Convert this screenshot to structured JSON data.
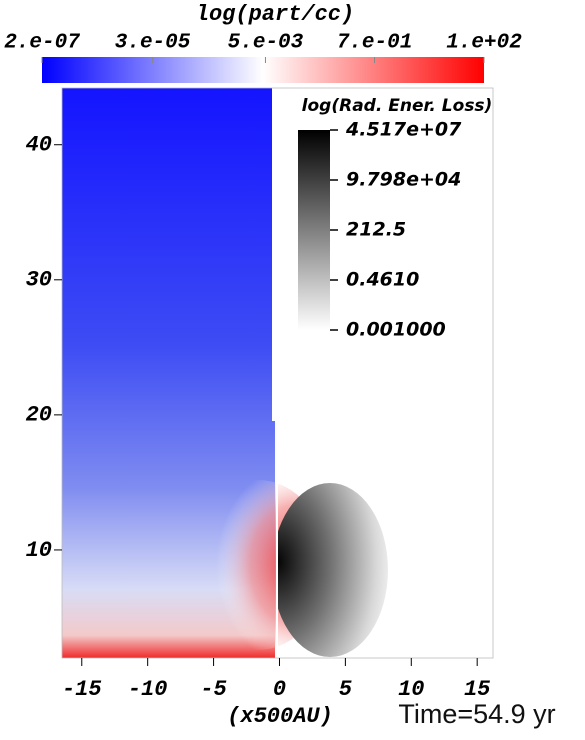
{
  "chart_data": {
    "type": "heatmap",
    "xlabel": "(x500AU)",
    "annotation": "Time=54.9 yr",
    "xlim": [
      -16.5,
      16.2
    ],
    "xticks": [
      -15,
      -10,
      -5,
      0,
      5,
      10,
      15
    ],
    "ylim": [
      2,
      44.2
    ],
    "yticks": [
      10,
      20,
      30,
      40
    ],
    "colorbars": [
      {
        "title": "log(part/cc)",
        "scale": "log",
        "lim": [
          2e-07,
          100
        ],
        "ticks": [
          {
            "value": 2e-07,
            "label": "2.e-07"
          },
          {
            "value": 3e-05,
            "label": "3.e-05"
          },
          {
            "value": 0.005,
            "label": "5.e-03"
          },
          {
            "value": 0.7,
            "label": "7.e-01"
          },
          {
            "value": 100,
            "label": "1.e+02"
          }
        ],
        "colors": [
          "#0000ff",
          "#ffffff",
          "#ff0000"
        ]
      },
      {
        "title": "log(Rad. Ener. Loss)",
        "scale": "log",
        "lim": [
          0.001,
          45170000
        ],
        "ticks": [
          {
            "value": 45170000,
            "label": "4.517e+07"
          },
          {
            "value": 97980,
            "label": "9.798e+04"
          },
          212.5,
          {
            "value": 0.461,
            "label": "0.4610"
          },
          {
            "value": 0.001,
            "label": "0.001000"
          }
        ],
        "colors": [
          "#ffffff",
          "#000000"
        ]
      }
    ]
  }
}
